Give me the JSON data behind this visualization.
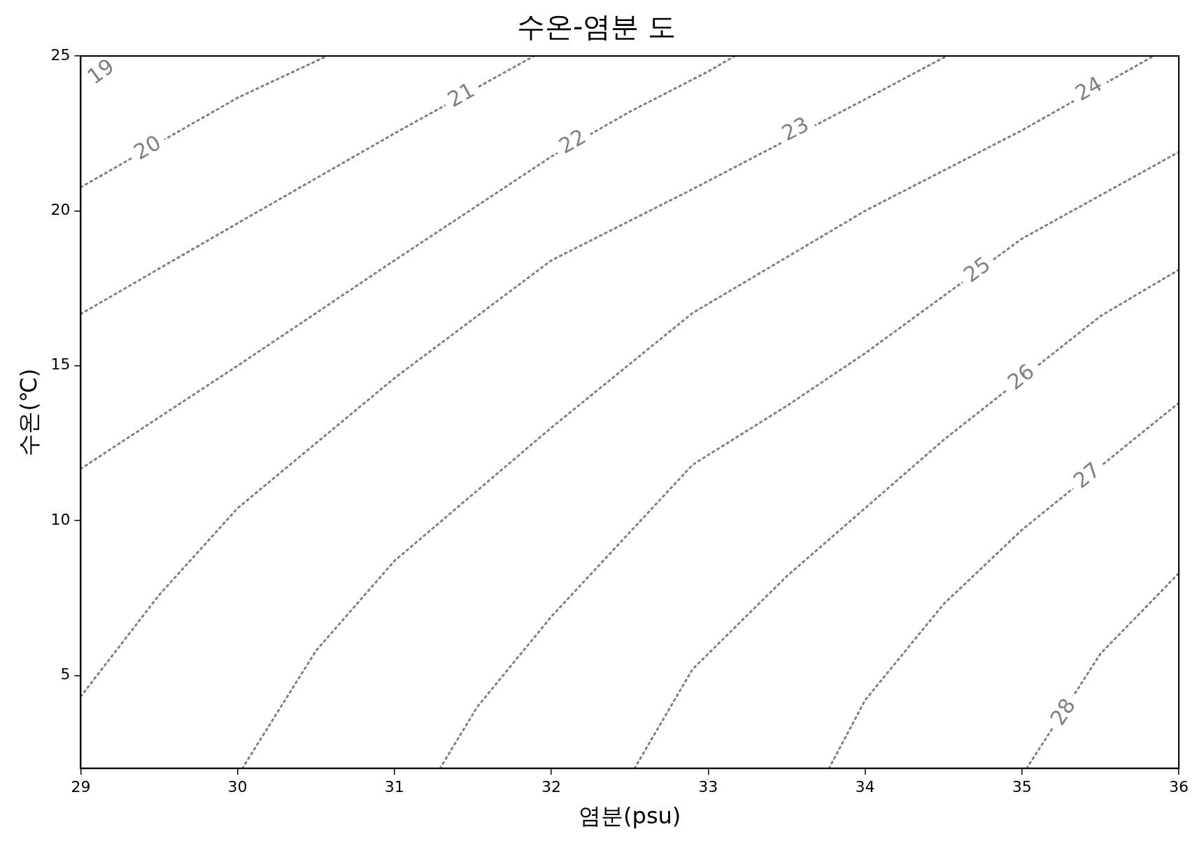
{
  "chart_data": {
    "type": "line",
    "title": "수온-염분 도",
    "xlabel": "염분(psu)",
    "ylabel": "수온(℃)",
    "xlim": [
      29,
      36
    ],
    "ylim": [
      2,
      25
    ],
    "xticks": [
      29,
      30,
      31,
      32,
      33,
      34,
      35,
      36
    ],
    "yticks": [
      5,
      10,
      15,
      20,
      25
    ],
    "grid": false,
    "legend": false,
    "marker": "none",
    "line_style": "dotted",
    "series": [
      {
        "color": "#808080",
        "x": [
          29,
          30,
          30.57
        ],
        "values": [
          20.76,
          23.65,
          25
        ]
      },
      {
        "color": "#808080",
        "x": [
          29,
          30,
          31,
          31.89
        ],
        "values": [
          16.67,
          19.6,
          22.5,
          25
        ]
      },
      {
        "color": "#808080",
        "x": [
          29,
          30,
          31,
          32,
          32.5,
          33,
          33.17
        ],
        "values": [
          11.67,
          15,
          18.4,
          21.75,
          23.2,
          24.5,
          25
        ]
      },
      {
        "color": "#808080",
        "x": [
          29,
          29.5,
          30,
          31,
          32,
          32.9,
          34,
          34.52
        ],
        "values": [
          4.32,
          7.6,
          10.4,
          14.6,
          18.4,
          20.7,
          23.6,
          25
        ]
      },
      {
        "color": "#808080",
        "x": [
          30.03,
          30.5,
          31,
          32,
          32.9,
          33.5,
          34,
          35,
          35.84
        ],
        "values": [
          2,
          5.8,
          8.7,
          13,
          16.7,
          18.5,
          20,
          22.6,
          25
        ]
      },
      {
        "color": "#808080",
        "x": [
          31.29,
          31.53,
          32,
          32.9,
          33.5,
          34,
          35,
          35.5,
          36
        ],
        "values": [
          2,
          4,
          6.9,
          11.8,
          13.7,
          15.4,
          19.1,
          20.5,
          21.9
        ]
      },
      {
        "color": "#808080",
        "x": [
          32.53,
          32.9,
          33.5,
          34,
          34.5,
          35.5,
          36
        ],
        "values": [
          2,
          5.2,
          8.2,
          10.4,
          12.6,
          16.6,
          18.1
        ]
      },
      {
        "color": "#808080",
        "x": [
          33.77,
          34,
          34.5,
          35,
          36
        ],
        "values": [
          2,
          4.2,
          7.3,
          9.7,
          13.8
        ]
      },
      {
        "color": "#808080",
        "x": [
          35.03,
          35.5,
          36
        ],
        "values": [
          2,
          5.7,
          8.3
        ]
      }
    ],
    "annotations": [
      "19",
      {
        "text": "20",
        "x": 29.43,
        "y": 22
      },
      {
        "text": "21",
        "x": 31.43,
        "y": 23.7
      },
      {
        "text": "22",
        "x": 32.14,
        "y": 22.2
      },
      {
        "text": "23",
        "x": 33.56,
        "y": 22.6
      },
      {
        "text": "24",
        "x": 35.43,
        "y": 23.9
      },
      {
        "text": "25",
        "x": 34.72,
        "y": 18.06
      },
      {
        "text": "26",
        "x": 35,
        "y": 14.6
      },
      {
        "text": "27",
        "x": 35.42,
        "y": 11.42
      },
      {
        "text": "28",
        "x": 35.27,
        "y": 3.8
      }
    ]
  }
}
